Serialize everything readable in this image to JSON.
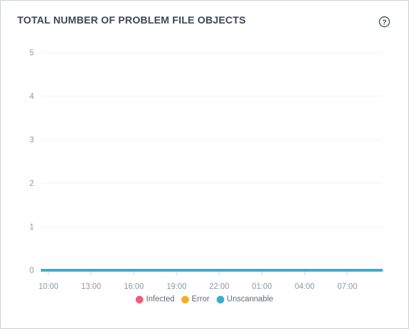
{
  "card": {
    "title": "TOTAL NUMBER OF PROBLEM FILE OBJECTS",
    "help_icon": "question-circle-icon"
  },
  "colors": {
    "infected": "#f05c7d",
    "error": "#f6ad2b",
    "unscannable": "#3aabcb",
    "grid": "#eef1f4",
    "tick": "#8a96a3"
  },
  "chart_data": {
    "type": "area",
    "title": "TOTAL NUMBER OF PROBLEM FILE OBJECTS",
    "xlabel": "",
    "ylabel": "",
    "ylim": [
      0,
      5
    ],
    "yticks": [
      "0",
      "1",
      "2",
      "3",
      "4",
      "5"
    ],
    "x": [
      "10:00",
      "13:00",
      "16:00",
      "19:00",
      "22:00",
      "01:00",
      "04:00",
      "07:00"
    ],
    "grid": true,
    "legend_position": "bottom",
    "series": [
      {
        "name": "Infected",
        "values": [
          0,
          0,
          0,
          0,
          0,
          0,
          0,
          0
        ]
      },
      {
        "name": "Error",
        "values": [
          0,
          0,
          0,
          0,
          0,
          0,
          0,
          0
        ]
      },
      {
        "name": "Unscannable",
        "values": [
          0,
          0,
          0,
          0,
          0,
          0,
          0,
          0
        ]
      }
    ]
  }
}
